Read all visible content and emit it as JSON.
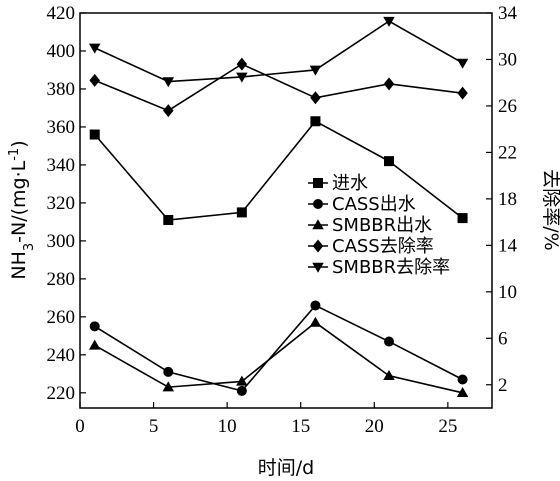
{
  "chart_data": {
    "type": "line",
    "x": [
      1,
      6,
      11,
      16,
      21,
      26
    ],
    "xlabel": "时间/d",
    "ylabel_left_main": "NH",
    "ylabel_left_sub": "3",
    "ylabel_left_rest": "-N/(mg·L",
    "ylabel_left_sup": "-1",
    "ylabel_left_end": ")",
    "ylabel_right": "去除率/%",
    "xlim": [
      0,
      28
    ],
    "ylim_left": [
      212,
      420
    ],
    "ylim_right": [
      0,
      34
    ],
    "x_ticks": [
      0,
      5,
      10,
      15,
      20,
      25
    ],
    "y_ticks_left": [
      220,
      240,
      260,
      280,
      300,
      320,
      340,
      360,
      380,
      400,
      420
    ],
    "y_ticks_right": [
      2,
      6,
      10,
      14,
      18,
      22,
      26,
      30,
      34
    ],
    "grid": false,
    "legend_position": "center-right",
    "series": [
      {
        "name": "进水",
        "axis": "left",
        "marker": "square",
        "values": [
          356,
          311,
          315,
          363,
          342,
          312
        ]
      },
      {
        "name": "CASS出水",
        "axis": "left",
        "marker": "circle",
        "values": [
          255,
          231,
          221,
          266,
          247,
          227
        ]
      },
      {
        "name": "SMBBR出水",
        "axis": "left",
        "marker": "triangle-up",
        "values": [
          245,
          223,
          226,
          257,
          229,
          220
        ]
      },
      {
        "name": "CASS去除率",
        "axis": "right",
        "marker": "diamond",
        "values": [
          28.2,
          25.6,
          29.6,
          26.7,
          27.9,
          27.1
        ]
      },
      {
        "name": "SMBBR去除率",
        "axis": "right",
        "marker": "triangle-down",
        "values": [
          31.0,
          28.1,
          28.5,
          29.1,
          33.3,
          29.7
        ]
      }
    ]
  }
}
